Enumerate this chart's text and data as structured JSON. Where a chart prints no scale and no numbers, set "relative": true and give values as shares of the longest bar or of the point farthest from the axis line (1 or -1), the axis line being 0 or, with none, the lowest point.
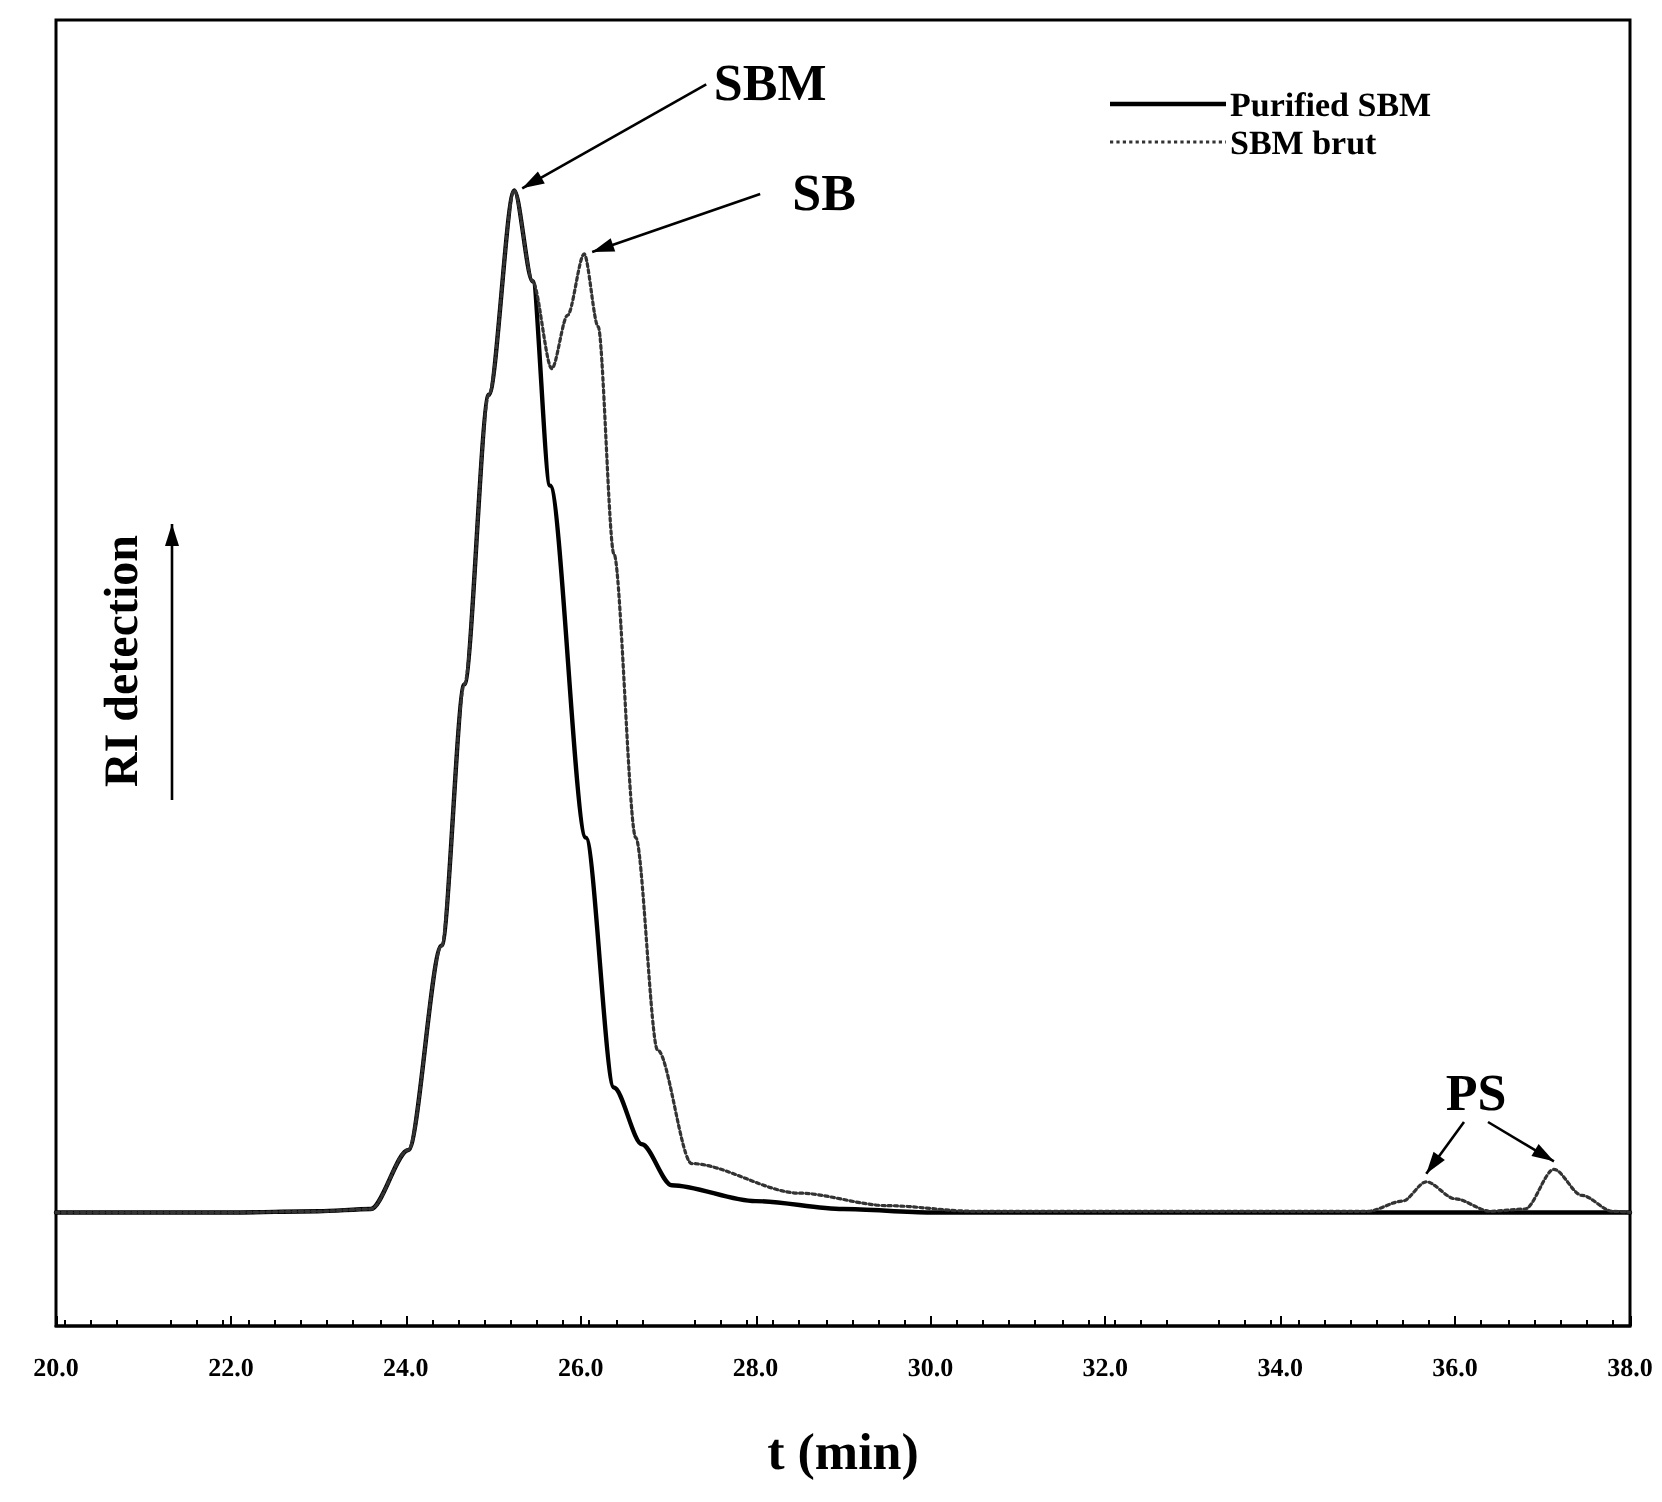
{
  "chart_data": {
    "type": "line",
    "relative": true,
    "xlabel": "t (min)",
    "ylabel": "RI detection",
    "xlim": [
      20,
      38
    ],
    "xticks": [
      {
        "value": 20,
        "label": "20.0"
      },
      {
        "value": 22,
        "label": "22.0"
      },
      {
        "value": 24,
        "label": "24.0"
      },
      {
        "value": 26,
        "label": "26.0"
      },
      {
        "value": 28,
        "label": "28.0"
      },
      {
        "value": 30,
        "label": "30.0"
      },
      {
        "value": 32,
        "label": "32.0"
      },
      {
        "value": 34,
        "label": "34.0"
      },
      {
        "value": 36,
        "label": "36.0"
      },
      {
        "value": 38,
        "label": "38.0"
      }
    ],
    "grid": false,
    "legend": "top right",
    "marker": "none",
    "series": [
      {
        "name": "Purified SBM",
        "color": "#000000",
        "line_style": "solid",
        "x": [
          20,
          22,
          23,
          23.6,
          24.03,
          24.41,
          24.67,
          24.95,
          25.24,
          25.45,
          25.65,
          26.06,
          26.38,
          26.7,
          27.04,
          28,
          29,
          30,
          38
        ],
        "values": [
          0.1,
          0.1,
          0.101,
          0.103,
          0.155,
          0.335,
          0.565,
          0.82,
          1.0,
          0.92,
          0.74,
          0.43,
          0.21,
          0.16,
          0.124,
          0.11,
          0.103,
          0.1,
          0.1
        ]
      },
      {
        "name": "SBM brut",
        "color": "#333333",
        "line_style": "dotted",
        "x": [
          20,
          22,
          23,
          23.6,
          24.03,
          24.41,
          24.67,
          24.95,
          25.24,
          25.45,
          25.67,
          25.85,
          26.04,
          26.2,
          26.38,
          26.63,
          26.88,
          27.27,
          28.5,
          29.5,
          30.5,
          35,
          35.4,
          35.67,
          36,
          36.4,
          36.8,
          37.13,
          37.45,
          37.8,
          38
        ],
        "values": [
          0.1,
          0.1,
          0.101,
          0.103,
          0.155,
          0.335,
          0.565,
          0.82,
          1.0,
          0.92,
          0.843,
          0.89,
          0.944,
          0.88,
          0.68,
          0.43,
          0.243,
          0.143,
          0.117,
          0.106,
          0.101,
          0.101,
          0.11,
          0.127,
          0.112,
          0.101,
          0.103,
          0.138,
          0.115,
          0.101,
          0.1
        ]
      }
    ],
    "annotations": [
      {
        "text": "SBM",
        "x": 25.24,
        "y": 1.0
      },
      {
        "text": "SB",
        "x": 26.04,
        "y": 0.944
      },
      "PS"
    ]
  }
}
